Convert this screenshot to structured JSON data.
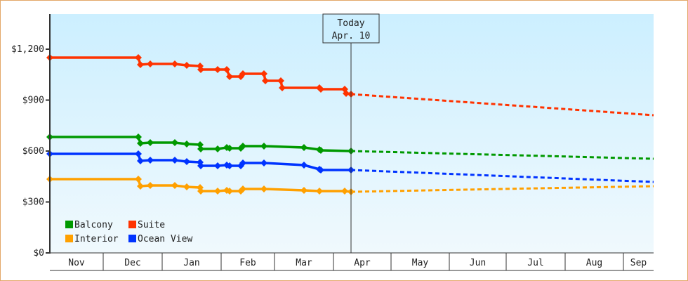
{
  "chart_data": {
    "type": "line",
    "title": "",
    "xlabel": "",
    "ylabel": "",
    "ylim": [
      0,
      1400
    ],
    "y_ticks": [
      {
        "value": 0,
        "label": "$0"
      },
      {
        "value": 300,
        "label": "$300"
      },
      {
        "value": 600,
        "label": "$600"
      },
      {
        "value": 900,
        "label": "$900"
      },
      {
        "value": 1200,
        "label": "$1,200"
      }
    ],
    "x_months": [
      "Nov",
      "Dec",
      "Jan",
      "Feb",
      "Mar",
      "Apr",
      "May",
      "Jun",
      "Jul",
      "Aug",
      "Sep"
    ],
    "grid": false,
    "legend_position": "lower-left inside plot",
    "annotation": {
      "line1": "Today",
      "line2": "Apr. 10"
    },
    "series": [
      {
        "name": "Balcony",
        "color": "#009900",
        "historical": [
          [
            71,
            195
          ],
          [
            197,
            195
          ],
          [
            200,
            204
          ],
          [
            214,
            203
          ],
          [
            249,
            203
          ],
          [
            266,
            205
          ],
          [
            285,
            206
          ],
          [
            286,
            212
          ],
          [
            310,
            212
          ],
          [
            323,
            210
          ],
          [
            327,
            211
          ],
          [
            343,
            211
          ],
          [
            346,
            208
          ],
          [
            376,
            208
          ],
          [
            433,
            210
          ],
          [
            455,
            213
          ],
          [
            457,
            214
          ],
          [
            500,
            215
          ]
        ],
        "forecast_end_value": 555,
        "price_start": 680,
        "price_today": 600
      },
      {
        "name": "Suite",
        "color": "#ff3300",
        "historical": [
          [
            71,
            82
          ],
          [
            197,
            82
          ],
          [
            200,
            92
          ],
          [
            214,
            91
          ],
          [
            249,
            91
          ],
          [
            266,
            93
          ],
          [
            285,
            94
          ],
          [
            286,
            99
          ],
          [
            310,
            99
          ],
          [
            323,
            99
          ],
          [
            327,
            109
          ],
          [
            343,
            109
          ],
          [
            346,
            105
          ],
          [
            376,
            105
          ],
          [
            378,
            115
          ],
          [
            400,
            115
          ],
          [
            402,
            125
          ],
          [
            455,
            125
          ],
          [
            457,
            127
          ],
          [
            491,
            127
          ],
          [
            493,
            133
          ],
          [
            500,
            134
          ]
        ],
        "forecast_end_value": 810,
        "price_start": 1150,
        "price_today": 935
      },
      {
        "name": "Interior",
        "color": "#ffa000",
        "historical": [
          [
            71,
            255
          ],
          [
            197,
            255
          ],
          [
            200,
            265
          ],
          [
            214,
            264
          ],
          [
            249,
            264
          ],
          [
            266,
            266
          ],
          [
            285,
            267
          ],
          [
            286,
            272
          ],
          [
            310,
            272
          ],
          [
            323,
            271
          ],
          [
            327,
            272
          ],
          [
            343,
            272
          ],
          [
            346,
            269
          ],
          [
            376,
            269
          ],
          [
            433,
            271
          ],
          [
            455,
            272
          ],
          [
            491,
            272
          ],
          [
            500,
            273
          ]
        ],
        "forecast_end_value": 390,
        "price_start": 435,
        "price_today": 360
      },
      {
        "name": "Ocean View",
        "color": "#0033ff",
        "historical": [
          [
            71,
            219
          ],
          [
            197,
            219
          ],
          [
            200,
            229
          ],
          [
            214,
            228
          ],
          [
            249,
            228
          ],
          [
            266,
            230
          ],
          [
            285,
            231
          ],
          [
            286,
            236
          ],
          [
            310,
            236
          ],
          [
            323,
            235
          ],
          [
            327,
            236
          ],
          [
            343,
            236
          ],
          [
            346,
            232
          ],
          [
            376,
            232
          ],
          [
            433,
            235
          ],
          [
            455,
            241
          ],
          [
            457,
            242
          ],
          [
            500,
            242
          ]
        ],
        "forecast_end_value": 420,
        "price_start": 580,
        "price_today": 490
      }
    ],
    "forecast": {
      "Balcony": [
        [
          500,
          215
        ],
        [
          931,
          226
        ]
      ],
      "Suite": [
        [
          500,
          134
        ],
        [
          931,
          164
        ]
      ],
      "Interior": [
        [
          500,
          273
        ],
        [
          931,
          265
        ]
      ],
      "Ocean View": [
        [
          500,
          242
        ],
        [
          931,
          259
        ]
      ]
    }
  },
  "legend": [
    {
      "label": "Balcony",
      "color": "#009900"
    },
    {
      "label": "Suite",
      "color": "#ff3300"
    },
    {
      "label": "Interior",
      "color": "#ffa000"
    },
    {
      "label": "Ocean View",
      "color": "#0033ff"
    }
  ]
}
